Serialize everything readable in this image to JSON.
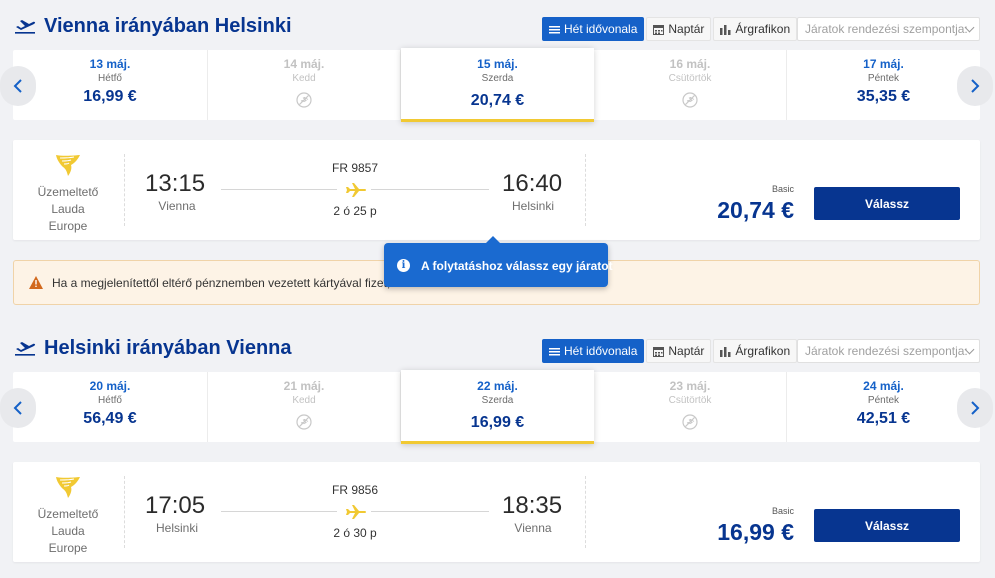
{
  "toolbar": {
    "week_view": "Hét idővonala",
    "calendar": "Naptár",
    "price_chart": "Árgrafikon",
    "sort_placeholder": "Járatok rendezési szempontja:"
  },
  "outbound": {
    "title": "Vienna irányában Helsinki",
    "dates": [
      {
        "date": "13 máj.",
        "day": "Hétfő",
        "price": "16,99 €"
      },
      {
        "date": "14 máj.",
        "day": "Kedd",
        "price": ""
      },
      {
        "date": "15 máj.",
        "day": "Szerda",
        "price": "20,74 €"
      },
      {
        "date": "16 máj.",
        "day": "Csütörtök",
        "price": ""
      },
      {
        "date": "17 máj.",
        "day": "Péntek",
        "price": "35,35 €"
      }
    ],
    "flight": {
      "operator": [
        "Üzemeltető",
        "Lauda",
        "Europe"
      ],
      "depart_time": "13:15",
      "depart_city": "Vienna",
      "flight_no": "FR 9857",
      "duration": "2 ó 25 p",
      "arrive_time": "16:40",
      "arrive_city": "Helsinki",
      "fare_label": "Basic",
      "price": "20,74 €",
      "select_label": "Válassz"
    }
  },
  "warning": {
    "text": "Ha a megjelenítettől eltérő pénznemben vezetett kártyával fizet, a"
  },
  "tooltip": {
    "text": "A folytatáshoz válassz egy járatot"
  },
  "inbound": {
    "title": "Helsinki irányában Vienna",
    "dates": [
      {
        "date": "20 máj.",
        "day": "Hétfő",
        "price": "56,49 €"
      },
      {
        "date": "21 máj.",
        "day": "Kedd",
        "price": ""
      },
      {
        "date": "22 máj.",
        "day": "Szerda",
        "price": "16,99 €"
      },
      {
        "date": "23 máj.",
        "day": "Csütörtök",
        "price": ""
      },
      {
        "date": "24 máj.",
        "day": "Péntek",
        "price": "42,51 €"
      }
    ],
    "flight": {
      "operator": [
        "Üzemeltető",
        "Lauda",
        "Europe"
      ],
      "depart_time": "17:05",
      "depart_city": "Helsinki",
      "flight_no": "FR 9856",
      "duration": "2 ó 30 p",
      "arrive_time": "18:35",
      "arrive_city": "Vienna",
      "fare_label": "Basic",
      "price": "16,99 €",
      "select_label": "Válassz"
    }
  },
  "colors": {
    "brand_blue": "#073590",
    "accent_blue": "#1561c8",
    "highlight_yellow": "#f1c933"
  },
  "icons": [
    "plane-takeoff-icon",
    "list-icon",
    "calendar-icon",
    "bar-chart-icon",
    "chevron-left-icon",
    "chevron-right-icon",
    "no-flight-icon",
    "ryanair-harp-logo",
    "warning-icon",
    "info-icon"
  ]
}
